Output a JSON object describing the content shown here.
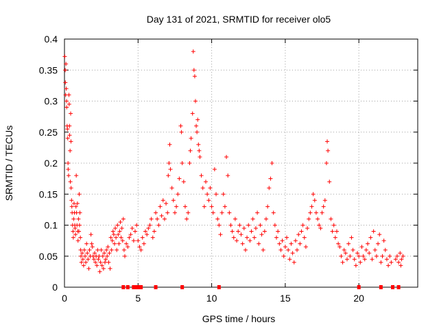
{
  "chart_data": {
    "type": "scatter",
    "title": "Day 131 of 2021, SRMTID for receiver olo5",
    "xlabel": "GPS time / hours",
    "ylabel": "SRMTID / TECUs",
    "xlim": [
      0,
      24
    ],
    "ylim": [
      0,
      0.4
    ],
    "x_ticks": [
      "0",
      "5",
      "10",
      "15",
      "20"
    ],
    "y_ticks": [
      "0",
      "0.05",
      "0.1",
      "0.15",
      "0.2",
      "0.25",
      "0.3",
      "0.35",
      "0.4"
    ],
    "marker": "+",
    "color": "#ff0000",
    "grid": true,
    "series": [
      {
        "name": "SRMTID",
        "points": [
          [
            0.02,
            0.372
          ],
          [
            0.05,
            0.35
          ],
          [
            0.06,
            0.33
          ],
          [
            0.08,
            0.31
          ],
          [
            0.1,
            0.36
          ],
          [
            0.12,
            0.32
          ],
          [
            0.14,
            0.3
          ],
          [
            0.15,
            0.29
          ],
          [
            0.18,
            0.26
          ],
          [
            0.2,
            0.255
          ],
          [
            0.22,
            0.24
          ],
          [
            0.24,
            0.2
          ],
          [
            0.25,
            0.19
          ],
          [
            0.28,
            0.18
          ],
          [
            0.3,
            0.31
          ],
          [
            0.32,
            0.295
          ],
          [
            0.34,
            0.26
          ],
          [
            0.35,
            0.245
          ],
          [
            0.38,
            0.22
          ],
          [
            0.4,
            0.17
          ],
          [
            0.42,
            0.28
          ],
          [
            0.44,
            0.235
          ],
          [
            0.45,
            0.16
          ],
          [
            0.48,
            0.14
          ],
          [
            0.5,
            0.13
          ],
          [
            0.52,
            0.12
          ],
          [
            0.55,
            0.1
          ],
          [
            0.58,
            0.09
          ],
          [
            0.6,
            0.08
          ],
          [
            0.62,
            0.11
          ],
          [
            0.65,
            0.135
          ],
          [
            0.68,
            0.12
          ],
          [
            0.7,
            0.1
          ],
          [
            0.72,
            0.095
          ],
          [
            0.75,
            0.085
          ],
          [
            0.78,
            0.13
          ],
          [
            0.8,
            0.18
          ],
          [
            0.82,
            0.12
          ],
          [
            0.85,
            0.1
          ],
          [
            0.88,
            0.135
          ],
          [
            0.9,
            0.09
          ],
          [
            0.92,
            0.075
          ],
          [
            0.95,
            0.11
          ],
          [
            0.98,
            0.09
          ],
          [
            1.0,
            0.15
          ],
          [
            1.02,
            0.1
          ],
          [
            1.05,
            0.12
          ],
          [
            1.08,
            0.08
          ],
          [
            1.1,
            0.06
          ],
          [
            1.12,
            0.05
          ],
          [
            1.15,
            0.04
          ],
          [
            1.2,
            0.055
          ],
          [
            1.25,
            0.045
          ],
          [
            1.3,
            0.035
          ],
          [
            1.35,
            0.06
          ],
          [
            1.4,
            0.05
          ],
          [
            1.45,
            0.04
          ],
          [
            1.5,
            0.07
          ],
          [
            1.55,
            0.055
          ],
          [
            1.6,
            0.045
          ],
          [
            1.65,
            0.03
          ],
          [
            1.7,
            0.06
          ],
          [
            1.75,
            0.05
          ],
          [
            1.8,
            0.085
          ],
          [
            1.85,
            0.07
          ],
          [
            1.9,
            0.065
          ],
          [
            1.95,
            0.05
          ],
          [
            2.0,
            0.045
          ],
          [
            2.05,
            0.055
          ],
          [
            2.1,
            0.04
          ],
          [
            2.15,
            0.05
          ],
          [
            2.2,
            0.035
          ],
          [
            2.25,
            0.06
          ],
          [
            2.3,
            0.045
          ],
          [
            2.35,
            0.05
          ],
          [
            2.4,
            0.025
          ],
          [
            2.45,
            0.04
          ],
          [
            2.5,
            0.06
          ],
          [
            2.55,
            0.035
          ],
          [
            2.6,
            0.05
          ],
          [
            2.65,
            0.03
          ],
          [
            2.7,
            0.055
          ],
          [
            2.75,
            0.04
          ],
          [
            2.8,
            0.045
          ],
          [
            2.85,
            0.06
          ],
          [
            2.9,
            0.05
          ],
          [
            2.95,
            0.065
          ],
          [
            3.0,
            0.04
          ],
          [
            3.05,
            0.055
          ],
          [
            3.1,
            0.03
          ],
          [
            3.15,
            0.08
          ],
          [
            3.2,
            0.06
          ],
          [
            3.25,
            0.075
          ],
          [
            3.3,
            0.09
          ],
          [
            3.35,
            0.085
          ],
          [
            3.4,
            0.07
          ],
          [
            3.45,
            0.095
          ],
          [
            3.5,
            0.08
          ],
          [
            3.55,
            0.06
          ],
          [
            3.6,
            0.1
          ],
          [
            3.65,
            0.085
          ],
          [
            3.7,
            0.07
          ],
          [
            3.75,
            0.09
          ],
          [
            3.8,
            0.105
          ],
          [
            3.85,
            0.08
          ],
          [
            3.9,
            0.095
          ],
          [
            3.95,
            0.075
          ],
          [
            4.0,
            0.11
          ],
          [
            4.05,
            0.06
          ],
          [
            4.1,
            0.05
          ],
          [
            4.2,
            0.07
          ],
          [
            4.3,
            0.065
          ],
          [
            4.4,
            0.08
          ],
          [
            4.5,
            0.085
          ],
          [
            4.6,
            0.095
          ],
          [
            4.7,
            0.075
          ],
          [
            4.8,
            0.09
          ],
          [
            4.9,
            0.1
          ],
          [
            5.0,
            0.075
          ],
          [
            5.1,
            0.065
          ],
          [
            5.2,
            0.06
          ],
          [
            5.3,
            0.08
          ],
          [
            5.4,
            0.07
          ],
          [
            5.5,
            0.09
          ],
          [
            5.6,
            0.085
          ],
          [
            5.7,
            0.095
          ],
          [
            5.8,
            0.1
          ],
          [
            5.9,
            0.11
          ],
          [
            6.0,
            0.08
          ],
          [
            6.1,
            0.09
          ],
          [
            6.2,
            0.12
          ],
          [
            6.3,
            0.11
          ],
          [
            6.4,
            0.1
          ],
          [
            6.5,
            0.13
          ],
          [
            6.6,
            0.115
          ],
          [
            6.7,
            0.14
          ],
          [
            6.8,
            0.11
          ],
          [
            6.9,
            0.135
          ],
          [
            7.0,
            0.12
          ],
          [
            7.05,
            0.18
          ],
          [
            7.1,
            0.2
          ],
          [
            7.15,
            0.23
          ],
          [
            7.2,
            0.19
          ],
          [
            7.3,
            0.16
          ],
          [
            7.4,
            0.14
          ],
          [
            7.5,
            0.12
          ],
          [
            7.6,
            0.13
          ],
          [
            7.7,
            0.15
          ],
          [
            7.8,
            0.175
          ],
          [
            7.9,
            0.26
          ],
          [
            7.95,
            0.25
          ],
          [
            8.0,
            0.2
          ],
          [
            8.1,
            0.17
          ],
          [
            8.2,
            0.13
          ],
          [
            8.3,
            0.11
          ],
          [
            8.4,
            0.12
          ],
          [
            8.5,
            0.2
          ],
          [
            8.55,
            0.22
          ],
          [
            8.6,
            0.24
          ],
          [
            8.7,
            0.28
          ],
          [
            8.75,
            0.38
          ],
          [
            8.8,
            0.35
          ],
          [
            8.85,
            0.34
          ],
          [
            8.9,
            0.3
          ],
          [
            8.95,
            0.26
          ],
          [
            9.0,
            0.25
          ],
          [
            9.05,
            0.27
          ],
          [
            9.1,
            0.23
          ],
          [
            9.15,
            0.22
          ],
          [
            9.2,
            0.21
          ],
          [
            9.3,
            0.18
          ],
          [
            9.4,
            0.16
          ],
          [
            9.5,
            0.13
          ],
          [
            9.6,
            0.17
          ],
          [
            9.7,
            0.15
          ],
          [
            9.8,
            0.14
          ],
          [
            9.9,
            0.16
          ],
          [
            10.0,
            0.13
          ],
          [
            10.1,
            0.12
          ],
          [
            10.2,
            0.19
          ],
          [
            10.3,
            0.15
          ],
          [
            10.4,
            0.11
          ],
          [
            10.5,
            0.1
          ],
          [
            10.6,
            0.085
          ],
          [
            10.7,
            0.12
          ],
          [
            10.8,
            0.15
          ],
          [
            10.9,
            0.13
          ],
          [
            11.0,
            0.21
          ],
          [
            11.1,
            0.18
          ],
          [
            11.2,
            0.12
          ],
          [
            11.3,
            0.1
          ],
          [
            11.4,
            0.09
          ],
          [
            11.5,
            0.08
          ],
          [
            11.6,
            0.11
          ],
          [
            11.7,
            0.075
          ],
          [
            11.8,
            0.09
          ],
          [
            11.9,
            0.1
          ],
          [
            12.0,
            0.085
          ],
          [
            12.1,
            0.07
          ],
          [
            12.2,
            0.095
          ],
          [
            12.3,
            0.06
          ],
          [
            12.4,
            0.08
          ],
          [
            12.5,
            0.1
          ],
          [
            12.6,
            0.075
          ],
          [
            12.7,
            0.09
          ],
          [
            12.8,
            0.11
          ],
          [
            12.9,
            0.08
          ],
          [
            13.0,
            0.095
          ],
          [
            13.1,
            0.12
          ],
          [
            13.2,
            0.07
          ],
          [
            13.3,
            0.1
          ],
          [
            13.4,
            0.085
          ],
          [
            13.5,
            0.06
          ],
          [
            13.6,
            0.09
          ],
          [
            13.7,
            0.11
          ],
          [
            13.8,
            0.13
          ],
          [
            13.9,
            0.16
          ],
          [
            14.0,
            0.175
          ],
          [
            14.1,
            0.2
          ],
          [
            14.2,
            0.12
          ],
          [
            14.3,
            0.1
          ],
          [
            14.4,
            0.08
          ],
          [
            14.5,
            0.09
          ],
          [
            14.6,
            0.07
          ],
          [
            14.7,
            0.06
          ],
          [
            14.8,
            0.075
          ],
          [
            14.9,
            0.05
          ],
          [
            15.0,
            0.065
          ],
          [
            15.1,
            0.08
          ],
          [
            15.2,
            0.06
          ],
          [
            15.3,
            0.045
          ],
          [
            15.4,
            0.07
          ],
          [
            15.5,
            0.055
          ],
          [
            15.6,
            0.04
          ],
          [
            15.7,
            0.075
          ],
          [
            15.8,
            0.06
          ],
          [
            15.9,
            0.085
          ],
          [
            16.0,
            0.07
          ],
          [
            16.1,
            0.09
          ],
          [
            16.2,
            0.1
          ],
          [
            16.3,
            0.08
          ],
          [
            16.4,
            0.065
          ],
          [
            16.5,
            0.095
          ],
          [
            16.6,
            0.11
          ],
          [
            16.7,
            0.12
          ],
          [
            16.8,
            0.13
          ],
          [
            16.9,
            0.15
          ],
          [
            17.0,
            0.14
          ],
          [
            17.1,
            0.12
          ],
          [
            17.2,
            0.11
          ],
          [
            17.3,
            0.1
          ],
          [
            17.4,
            0.095
          ],
          [
            17.5,
            0.12
          ],
          [
            17.6,
            0.13
          ],
          [
            17.7,
            0.14
          ],
          [
            17.8,
            0.2
          ],
          [
            17.85,
            0.235
          ],
          [
            17.9,
            0.22
          ],
          [
            18.0,
            0.17
          ],
          [
            18.1,
            0.11
          ],
          [
            18.2,
            0.09
          ],
          [
            18.3,
            0.1
          ],
          [
            18.4,
            0.08
          ],
          [
            18.5,
            0.09
          ],
          [
            18.6,
            0.07
          ],
          [
            18.7,
            0.065
          ],
          [
            18.8,
            0.05
          ],
          [
            18.9,
            0.04
          ],
          [
            19.0,
            0.06
          ],
          [
            19.1,
            0.055
          ],
          [
            19.2,
            0.045
          ],
          [
            19.3,
            0.07
          ],
          [
            19.4,
            0.05
          ],
          [
            19.5,
            0.08
          ],
          [
            19.6,
            0.06
          ],
          [
            19.7,
            0.045
          ],
          [
            19.8,
            0.035
          ],
          [
            19.9,
            0.055
          ],
          [
            20.0,
            0.05
          ],
          [
            20.1,
            0.04
          ],
          [
            20.2,
            0.065
          ],
          [
            20.3,
            0.05
          ],
          [
            20.4,
            0.045
          ],
          [
            20.5,
            0.06
          ],
          [
            20.6,
            0.07
          ],
          [
            20.7,
            0.055
          ],
          [
            20.8,
            0.08
          ],
          [
            20.9,
            0.045
          ],
          [
            21.0,
            0.09
          ],
          [
            21.1,
            0.06
          ],
          [
            21.2,
            0.05
          ],
          [
            21.3,
            0.07
          ],
          [
            21.4,
            0.085
          ],
          [
            21.5,
            0.04
          ],
          [
            21.6,
            0.05
          ],
          [
            21.7,
            0.075
          ],
          [
            21.8,
            0.06
          ],
          [
            21.9,
            0.045
          ],
          [
            22.0,
            0.035
          ],
          [
            22.1,
            0.05
          ],
          [
            22.2,
            0.04
          ],
          [
            22.5,
            0.045
          ],
          [
            22.6,
            0.05
          ],
          [
            22.7,
            0.04
          ],
          [
            22.8,
            0.055
          ],
          [
            22.85,
            0.035
          ],
          [
            22.9,
            0.045
          ],
          [
            23.0,
            0.05
          ]
        ]
      }
    ],
    "zero_points_x": [
      4.0,
      4.3,
      4.7,
      4.85,
      5.0,
      5.2,
      6.2,
      8.0,
      10.5,
      20.0,
      21.5,
      22.3,
      22.7
    ]
  }
}
